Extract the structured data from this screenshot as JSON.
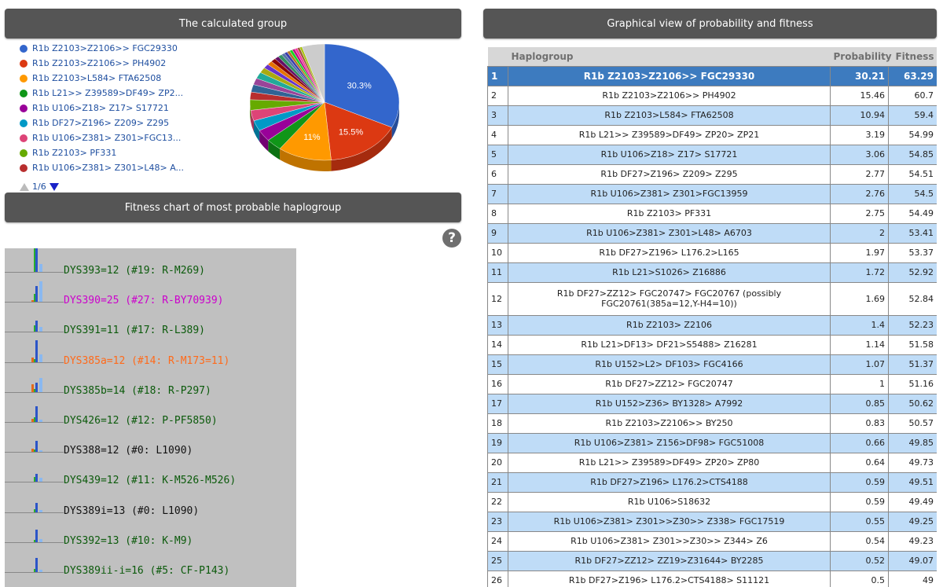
{
  "panels": {
    "calculated_group": "The calculated group",
    "fitness_chart": "Fitness chart of most probable haplogroup",
    "graphical_view": "Graphical view of probability and fitness"
  },
  "legend": [
    {
      "label": "R1b Z2103>Z2106>> FGC29330",
      "color": "#3366cc"
    },
    {
      "label": "R1b Z2103>Z2106>> PH4902",
      "color": "#dc3912"
    },
    {
      "label": "R1b Z2103>L584> FTA62508",
      "color": "#ff9900"
    },
    {
      "label": "R1b L21>> Z39589>DF49> ZP2...",
      "color": "#109618"
    },
    {
      "label": "R1b U106>Z18> Z17> S17721",
      "color": "#990099"
    },
    {
      "label": "R1b DF27>Z196> Z209> Z295",
      "color": "#0099c6"
    },
    {
      "label": "R1b U106>Z381> Z301>FGC13...",
      "color": "#dd4477"
    },
    {
      "label": "R1b Z2103> PF331",
      "color": "#66aa00"
    },
    {
      "label": "R1b U106>Z381> Z301>L48> A...",
      "color": "#b82e2e"
    }
  ],
  "pager": "1/6",
  "pie": {
    "slices": [
      30.21,
      15.46,
      10.94,
      3.19,
      3.06,
      2.77,
      2.76,
      2.75,
      2,
      1.97,
      1.72,
      1.69,
      1.4,
      1.14,
      1.07,
      1,
      0.85,
      0.83,
      0.66,
      0.64,
      0.59,
      0.59,
      0.55,
      0.54,
      0.52,
      0.5,
      4.6
    ],
    "colors": [
      "#3366cc",
      "#dc3912",
      "#ff9900",
      "#109618",
      "#990099",
      "#0099c6",
      "#dd4477",
      "#66aa00",
      "#b82e2e",
      "#316395",
      "#994499",
      "#22aa99",
      "#aaaa11",
      "#6633cc",
      "#e67300",
      "#8b0707",
      "#651067",
      "#329262",
      "#5574a6",
      "#3b3eac",
      "#b77322",
      "#16d620",
      "#b91383",
      "#f4359e",
      "#9c5935",
      "#a9c413",
      "#cccccc"
    ],
    "labels": [
      "30.3%",
      "15.5%",
      "11%"
    ]
  },
  "fitness_rows": [
    {
      "text": "DYS393=12 (#19: R-M269)",
      "color": "#0b5a0b"
    },
    {
      "text": "DYS390=25 (#27: R-BY70939)",
      "color": "#cc00cc"
    },
    {
      "text": "DYS391=11 (#17: R-L389)",
      "color": "#0b5a0b"
    },
    {
      "text": "DYS385a=12 (#14: R-M173=11)",
      "color": "#ff6a1a"
    },
    {
      "text": "DYS385b=14 (#18: R-P297)",
      "color": "#0b5a0b"
    },
    {
      "text": "DYS426=12 (#12: P-PF5850)",
      "color": "#0b5a0b"
    },
    {
      "text": "DYS388=12 (#0: L1090)",
      "color": "#111111"
    },
    {
      "text": "DYS439=12 (#11: K-M526-M526)",
      "color": "#0b5a0b"
    },
    {
      "text": "DYS389i=13 (#0: L1090)",
      "color": "#111111"
    },
    {
      "text": "DYS392=13 (#10: K-M9)",
      "color": "#0b5a0b"
    },
    {
      "text": "DYS389ii-i=16 (#5: CF-P143)",
      "color": "#0b5a0b"
    }
  ],
  "table": {
    "headers": {
      "rank": "",
      "haplogroup": "Haplogroup",
      "probability": "Probability",
      "fitness": "Fitness"
    },
    "rows": [
      {
        "rank": "1",
        "haplogroup": "R1b Z2103>Z2106>> FGC29330",
        "probability": "30.21",
        "fitness": "63.29"
      },
      {
        "rank": "2",
        "haplogroup": "R1b Z2103>Z2106>> PH4902",
        "probability": "15.46",
        "fitness": "60.7"
      },
      {
        "rank": "3",
        "haplogroup": "R1b Z2103>L584> FTA62508",
        "probability": "10.94",
        "fitness": "59.4"
      },
      {
        "rank": "4",
        "haplogroup": "R1b L21>> Z39589>DF49> ZP20> ZP21",
        "probability": "3.19",
        "fitness": "54.99"
      },
      {
        "rank": "5",
        "haplogroup": "R1b U106>Z18> Z17> S17721",
        "probability": "3.06",
        "fitness": "54.85"
      },
      {
        "rank": "6",
        "haplogroup": "R1b DF27>Z196> Z209> Z295",
        "probability": "2.77",
        "fitness": "54.51"
      },
      {
        "rank": "7",
        "haplogroup": "R1b U106>Z381> Z301>FGC13959",
        "probability": "2.76",
        "fitness": "54.5"
      },
      {
        "rank": "8",
        "haplogroup": "R1b Z2103> PF331",
        "probability": "2.75",
        "fitness": "54.49"
      },
      {
        "rank": "9",
        "haplogroup": "R1b U106>Z381> Z301>L48> A6703",
        "probability": "2",
        "fitness": "53.41"
      },
      {
        "rank": "10",
        "haplogroup": "R1b DF27>Z196> L176.2>L165",
        "probability": "1.97",
        "fitness": "53.37"
      },
      {
        "rank": "11",
        "haplogroup": "R1b L21>S1026> Z16886",
        "probability": "1.72",
        "fitness": "52.92"
      },
      {
        "rank": "12",
        "haplogroup": "R1b DF27>ZZ12> FGC20747> FGC20767 (possibly FGC20761(385a=12,Y-H4=10))",
        "probability": "1.69",
        "fitness": "52.84"
      },
      {
        "rank": "13",
        "haplogroup": "R1b Z2103> Z2106",
        "probability": "1.4",
        "fitness": "52.23"
      },
      {
        "rank": "14",
        "haplogroup": "R1b L21>DF13> DF21>S5488> Z16281",
        "probability": "1.14",
        "fitness": "51.58"
      },
      {
        "rank": "15",
        "haplogroup": "R1b U152>L2> DF103> FGC4166",
        "probability": "1.07",
        "fitness": "51.37"
      },
      {
        "rank": "16",
        "haplogroup": "R1b DF27>ZZ12> FGC20747",
        "probability": "1",
        "fitness": "51.16"
      },
      {
        "rank": "17",
        "haplogroup": "R1b U152>Z36> BY1328> A7992",
        "probability": "0.85",
        "fitness": "50.62"
      },
      {
        "rank": "18",
        "haplogroup": "R1b Z2103>Z2106>> BY250",
        "probability": "0.83",
        "fitness": "50.57"
      },
      {
        "rank": "19",
        "haplogroup": "R1b U106>Z381> Z156>DF98> FGC51008",
        "probability": "0.66",
        "fitness": "49.85"
      },
      {
        "rank": "20",
        "haplogroup": "R1b L21>> Z39589>DF49> ZP20> ZP80",
        "probability": "0.64",
        "fitness": "49.73"
      },
      {
        "rank": "21",
        "haplogroup": "R1b DF27>Z196> L176.2>CTS4188",
        "probability": "0.59",
        "fitness": "49.51"
      },
      {
        "rank": "22",
        "haplogroup": "R1b U106>S18632",
        "probability": "0.59",
        "fitness": "49.49"
      },
      {
        "rank": "23",
        "haplogroup": "R1b U106>Z381> Z301>>Z30>> Z338> FGC17519",
        "probability": "0.55",
        "fitness": "49.25"
      },
      {
        "rank": "24",
        "haplogroup": "R1b U106>Z381> Z301>>Z30>> Z344> Z6",
        "probability": "0.54",
        "fitness": "49.23"
      },
      {
        "rank": "25",
        "haplogroup": "R1b DF27>ZZ12> ZZ19>Z31644> BY2285",
        "probability": "0.52",
        "fitness": "49.07"
      },
      {
        "rank": "26",
        "haplogroup": "R1b DF27>Z196> L176.2>CTS4188> S11121",
        "probability": "0.5",
        "fitness": "49"
      }
    ]
  }
}
